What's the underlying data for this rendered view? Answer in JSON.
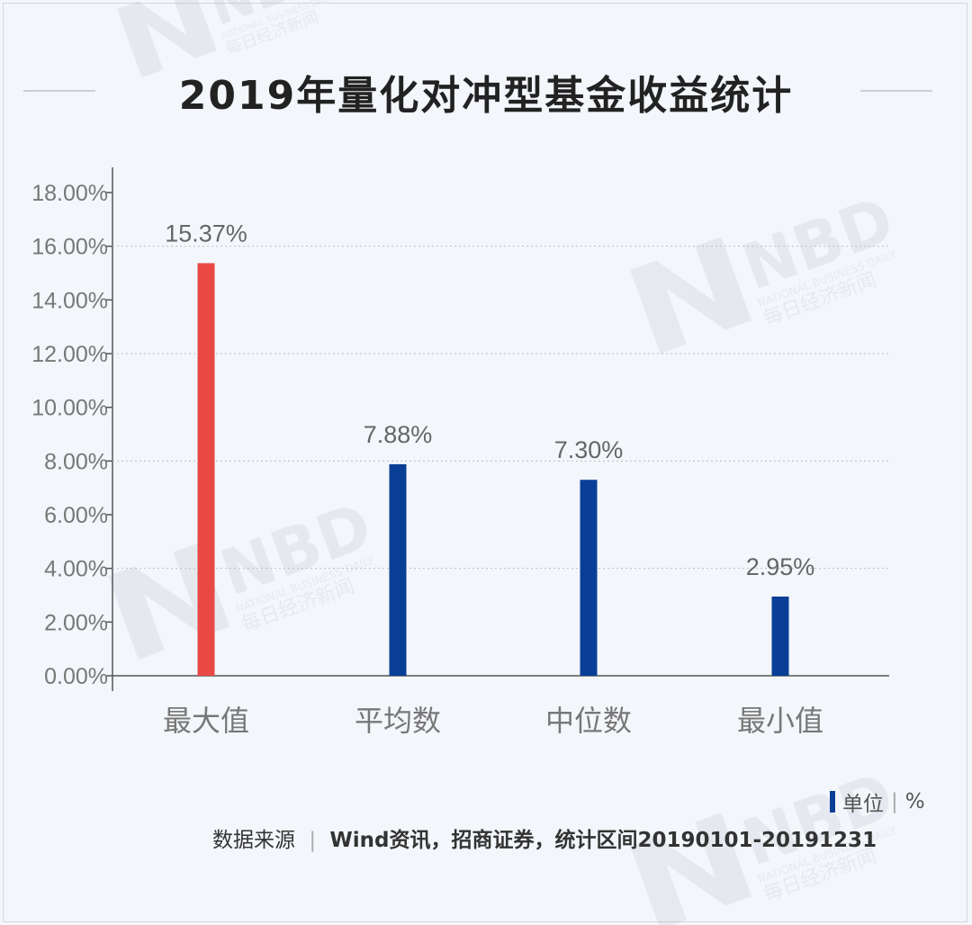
{
  "chart_data": {
    "type": "bar",
    "title": "2019年量化对冲型基金收益统计",
    "categories": [
      "最大值",
      "平均数",
      "中位数",
      "最小值"
    ],
    "values": [
      15.37,
      7.88,
      7.3,
      2.95
    ],
    "data_labels": [
      "15.37%",
      "7.88%",
      "7.30%",
      "2.95%"
    ],
    "bar_colors": [
      "#ea4845",
      "#0a3f96",
      "#0a3f96",
      "#0a3f96"
    ],
    "y_ticks": [
      "0.00%",
      "2.00%",
      "4.00%",
      "6.00%",
      "8.00%",
      "10.00%",
      "12.00%",
      "14.00%",
      "16.00%",
      "18.00%"
    ],
    "ylim": [
      0,
      18
    ],
    "grid": true,
    "xlabel": "",
    "ylabel": ""
  },
  "unit": {
    "label": "单位",
    "value": "%"
  },
  "source": {
    "label": "数据来源",
    "value": "Wind资讯，招商证券，统计区间20190101-20191231"
  },
  "watermark": {
    "brand": "NBD",
    "sub_en": "NATIONAL BUSINESS DAILY",
    "sub_cn": "每日经济新闻"
  }
}
